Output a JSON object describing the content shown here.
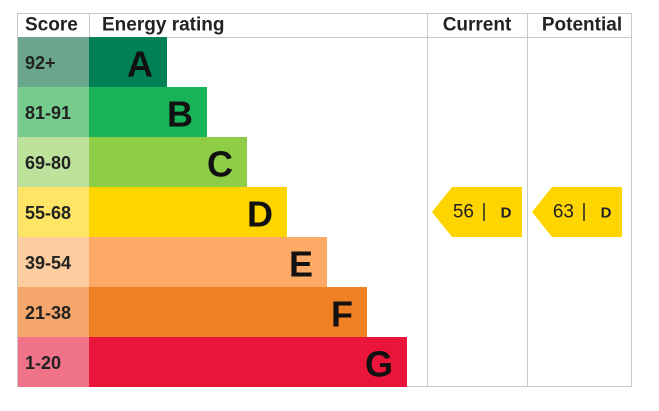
{
  "header": {
    "score": "Score",
    "rating": "Energy rating",
    "current": "Current",
    "potential": "Potential"
  },
  "bands": [
    {
      "score": "92+",
      "letter": "A",
      "color": "#008054",
      "light": "#6aa68b"
    },
    {
      "score": "81-91",
      "letter": "B",
      "color": "#19b459",
      "light": "#75cc8d"
    },
    {
      "score": "69-80",
      "letter": "C",
      "color": "#8dce46",
      "light": "#bde29b"
    },
    {
      "score": "55-68",
      "letter": "D",
      "color": "#ffd500",
      "light": "#ffe566"
    },
    {
      "score": "39-54",
      "letter": "E",
      "color": "#fcaa65",
      "light": "#fdcc9f"
    },
    {
      "score": "21-38",
      "letter": "F",
      "color": "#ef8023",
      "light": "#f4a66b"
    },
    {
      "score": "1-20",
      "letter": "G",
      "color": "#e9153b",
      "light": "#f07389"
    }
  ],
  "current": {
    "value": 56,
    "letter": "D"
  },
  "potential": {
    "value": 63,
    "letter": "D"
  }
}
